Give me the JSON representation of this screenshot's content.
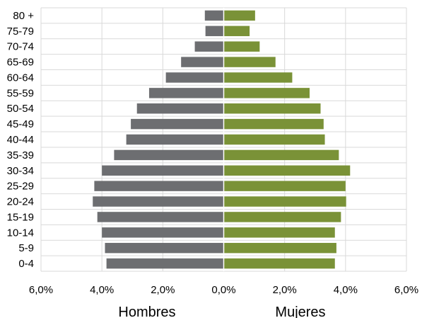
{
  "chart_data": {
    "type": "bar",
    "orientation": "horizontal",
    "layout": "population-pyramid",
    "categories": [
      "0-4",
      "5-9",
      "10-14",
      "15-19",
      "20-24",
      "25-29",
      "30-34",
      "35-39",
      "40-44",
      "45-49",
      "50-54",
      "55-59",
      "60-64",
      "65-69",
      "70-74",
      "75-79",
      "80 +"
    ],
    "series": [
      {
        "name": "Hombres",
        "side": "left",
        "color": "#6d6e71",
        "values": [
          3.85,
          3.9,
          4.0,
          4.15,
          4.3,
          4.25,
          4.0,
          3.6,
          3.2,
          3.05,
          2.85,
          2.45,
          1.9,
          1.4,
          0.95,
          0.6,
          0.62
        ]
      },
      {
        "name": "Mujeres",
        "side": "right",
        "color": "#7a9237",
        "values": [
          3.65,
          3.7,
          3.65,
          3.85,
          4.02,
          4.0,
          4.15,
          3.78,
          3.32,
          3.28,
          3.18,
          2.82,
          2.25,
          1.7,
          1.18,
          0.85,
          1.03
        ]
      }
    ],
    "xlim": [
      -6,
      6
    ],
    "x_ticks": [
      "6,0%",
      "4,0%",
      "2,0%",
      "0,0%",
      "2,0%",
      "4,0%",
      "6,0%"
    ],
    "xlabel_left": "Hombres",
    "xlabel_right": "Mujeres",
    "grid": true,
    "gridline_color": "#d9d9d9"
  }
}
